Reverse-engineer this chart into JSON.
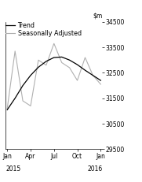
{
  "ylim": [
    29500,
    34500
  ],
  "yticks": [
    29500,
    30500,
    31500,
    32500,
    33500,
    34500
  ],
  "xlabel_ticks": [
    "Jan",
    "Apr",
    "Jul",
    "Oct",
    "Jan"
  ],
  "legend": [
    "Trend",
    "Seasonally Adjusted"
  ],
  "trend_x": [
    0,
    1,
    2,
    3,
    4,
    5,
    6,
    7,
    8,
    9,
    10,
    11,
    12
  ],
  "trend_y": [
    31050,
    31500,
    32000,
    32400,
    32720,
    32950,
    33100,
    33120,
    33000,
    32820,
    32600,
    32400,
    32200
  ],
  "seas_x": [
    0,
    1,
    2,
    3,
    4,
    5,
    6,
    7,
    8,
    9,
    10,
    11,
    12
  ],
  "seas_y": [
    31100,
    33350,
    31400,
    31200,
    33000,
    32800,
    33650,
    32900,
    32700,
    32200,
    33100,
    32400,
    32050
  ],
  "trend_color": "#000000",
  "seas_color": "#b0b0b0",
  "background_color": "#ffffff",
  "tick_fontsize": 5.5,
  "legend_fontsize": 5.8
}
